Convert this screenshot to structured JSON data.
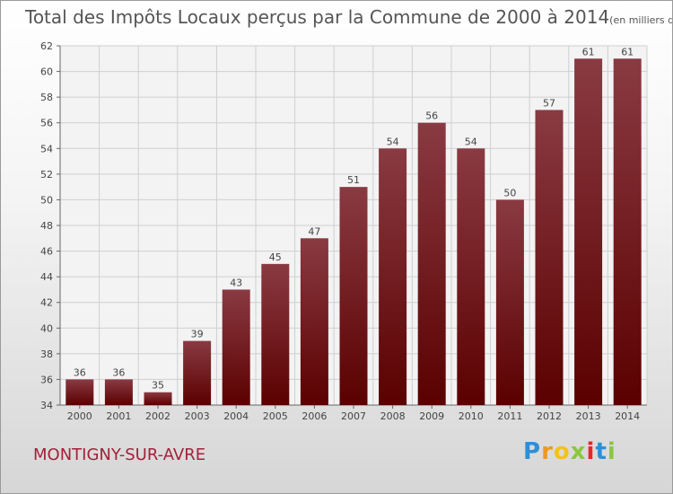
{
  "title": "Total des Impôts Locaux perçus par la Commune de 2000 à 2014",
  "unit_note": "(en milliers d'€)",
  "commune": "MONTIGNY-SUR-AVRE",
  "brand": {
    "letters": [
      "P",
      "r",
      "o",
      "x",
      "i",
      "t",
      "i"
    ],
    "colors": [
      "#2e8fd6",
      "#f09a1c",
      "#f5c21b",
      "#8cc63f",
      "#e8262b",
      "#2e8fd6",
      "#8cc63f"
    ]
  },
  "colors": {
    "bar_top": "#8a3a42",
    "bar_bottom": "#5a0000",
    "grid": "#cfcfcf"
  },
  "chart_data": {
    "type": "bar",
    "categories": [
      "2000",
      "2001",
      "2002",
      "2003",
      "2004",
      "2005",
      "2006",
      "2007",
      "2008",
      "2009",
      "2010",
      "2011",
      "2012",
      "2013",
      "2014"
    ],
    "values": [
      36,
      36,
      35,
      39,
      43,
      45,
      47,
      51,
      54,
      56,
      54,
      50,
      57,
      61,
      61
    ],
    "y_ticks": [
      34,
      36,
      38,
      40,
      42,
      44,
      46,
      48,
      50,
      52,
      54,
      56,
      58,
      60,
      62
    ],
    "ylim": [
      34,
      62
    ],
    "grid": true,
    "data_labels": true
  }
}
